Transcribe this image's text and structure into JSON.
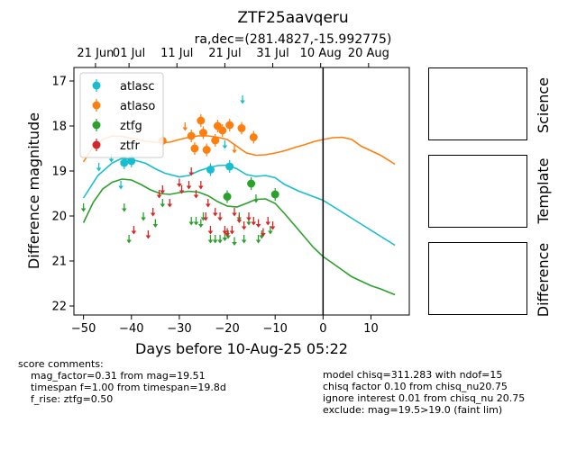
{
  "title": "ZTF25aavqeru",
  "subtitle": "ra,dec=(281.4827,-15.992775)",
  "chart_data": {
    "type": "scatter",
    "title": "ZTF25aavqeru",
    "subtitle": "ra,dec=(281.4827,-15.992775)",
    "xlabel": "Days before 10-Aug-25 05:22",
    "ylabel": "Difference magnitude",
    "xlim": [
      -52,
      18
    ],
    "ylim": [
      22.2,
      16.7
    ],
    "y_inverted": true,
    "xticks": [
      -50,
      -40,
      -30,
      -20,
      -10,
      0,
      10
    ],
    "yticks": [
      17,
      18,
      19,
      20,
      21,
      22
    ],
    "top_axis_ticks": [
      {
        "x": -47.5,
        "label": "21 Jun"
      },
      {
        "x": -40.5,
        "label": "01 Jul"
      },
      {
        "x": -30.5,
        "label": "11 Jul"
      },
      {
        "x": -20.5,
        "label": "21 Jul"
      },
      {
        "x": -10.5,
        "label": "31 Jul"
      },
      {
        "x": -0.5,
        "label": "10 Aug"
      },
      {
        "x": 9.5,
        "label": "20 Aug"
      }
    ],
    "vline_x": 0,
    "grid": false,
    "legend_position": "top-left",
    "series": [
      {
        "name": "atlasc",
        "color": "#17becf",
        "detections": [
          [
            -41.5,
            18.82
          ],
          [
            -40.0,
            18.78
          ],
          [
            -23.5,
            18.97
          ],
          [
            -19.5,
            18.9
          ]
        ],
        "upper_limits": [
          [
            -46.8,
            18.9
          ],
          [
            -44.2,
            18.7
          ],
          [
            -42.2,
            19.3
          ],
          [
            -20.5,
            18.4
          ],
          [
            -16.8,
            17.4
          ]
        ],
        "model": [
          [
            -50,
            19.6
          ],
          [
            -47,
            19.1
          ],
          [
            -44,
            18.82
          ],
          [
            -42,
            18.72
          ],
          [
            -40,
            18.74
          ],
          [
            -37,
            18.83
          ],
          [
            -35,
            18.95
          ],
          [
            -33,
            19.05
          ],
          [
            -30,
            19.13
          ],
          [
            -28,
            19.1
          ],
          [
            -26,
            19.0
          ],
          [
            -24,
            18.93
          ],
          [
            -22,
            18.88
          ],
          [
            -20,
            18.87
          ],
          [
            -18,
            18.95
          ],
          [
            -16,
            19.08
          ],
          [
            -14,
            19.12
          ],
          [
            -12,
            19.1
          ],
          [
            -10,
            19.15
          ],
          [
            -8,
            19.3
          ],
          [
            -5,
            19.45
          ],
          [
            -2,
            19.57
          ],
          [
            0,
            19.65
          ],
          [
            3,
            19.85
          ],
          [
            6,
            20.05
          ],
          [
            9,
            20.25
          ],
          [
            12,
            20.45
          ],
          [
            15,
            20.65
          ]
        ]
      },
      {
        "name": "atlaso",
        "color": "#ff7f0e",
        "detections": [
          [
            -33.5,
            18.33
          ],
          [
            -27.5,
            18.22
          ],
          [
            -26.8,
            18.5
          ],
          [
            -25.5,
            17.88
          ],
          [
            -25.0,
            18.15
          ],
          [
            -24.3,
            18.53
          ],
          [
            -22.5,
            18.32
          ],
          [
            -22.0,
            18.0
          ],
          [
            -21.0,
            18.1
          ],
          [
            -19.5,
            17.98
          ],
          [
            -17.0,
            18.05
          ],
          [
            -14.5,
            18.25
          ]
        ],
        "upper_limits": [
          [
            -28.8,
            18.0
          ],
          [
            -18.5,
            18.5
          ]
        ],
        "model": [
          [
            -50,
            18.8
          ],
          [
            -48,
            18.45
          ],
          [
            -46,
            18.3
          ],
          [
            -44,
            18.22
          ],
          [
            -42,
            18.23
          ],
          [
            -40,
            18.27
          ],
          [
            -38,
            18.32
          ],
          [
            -36,
            18.35
          ],
          [
            -34,
            18.37
          ],
          [
            -32,
            18.36
          ],
          [
            -30,
            18.3
          ],
          [
            -28,
            18.25
          ],
          [
            -26,
            18.22
          ],
          [
            -24,
            18.22
          ],
          [
            -22,
            18.25
          ],
          [
            -20,
            18.3
          ],
          [
            -18,
            18.45
          ],
          [
            -16,
            18.6
          ],
          [
            -14,
            18.65
          ],
          [
            -12,
            18.64
          ],
          [
            -10,
            18.6
          ],
          [
            -8,
            18.55
          ],
          [
            -6,
            18.48
          ],
          [
            -4,
            18.42
          ],
          [
            -2,
            18.35
          ],
          [
            0,
            18.3
          ],
          [
            2,
            18.26
          ],
          [
            4,
            18.25
          ],
          [
            6,
            18.3
          ],
          [
            8,
            18.45
          ],
          [
            10,
            18.55
          ],
          [
            12,
            18.65
          ],
          [
            15,
            18.85
          ]
        ]
      },
      {
        "name": "ztfg",
        "color": "#2ca02c",
        "detections": [
          [
            -20.0,
            19.57
          ],
          [
            -15.0,
            19.28
          ],
          [
            -10.0,
            19.52
          ]
        ],
        "upper_limits": [
          [
            -50.0,
            19.8
          ],
          [
            -41.5,
            19.8
          ],
          [
            -40.5,
            20.5
          ],
          [
            -37.5,
            20.0
          ],
          [
            -35.0,
            20.15
          ],
          [
            -33.5,
            19.7
          ],
          [
            -27.5,
            20.1
          ],
          [
            -26.5,
            20.1
          ],
          [
            -25.5,
            20.15
          ],
          [
            -25.0,
            20.0
          ],
          [
            -23.5,
            20.5
          ],
          [
            -22.5,
            20.5
          ],
          [
            -21.5,
            20.5
          ],
          [
            -20.5,
            20.45
          ],
          [
            -19.8,
            20.4
          ],
          [
            -18.5,
            20.55
          ],
          [
            -17.5,
            20.0
          ],
          [
            -16.5,
            20.5
          ],
          [
            -15.5,
            20.1
          ],
          [
            -14.0,
            19.6
          ],
          [
            -13.5,
            20.5
          ],
          [
            -12.8,
            20.4
          ],
          [
            -11.0,
            20.3
          ]
        ],
        "model": [
          [
            -50,
            20.15
          ],
          [
            -48,
            19.7
          ],
          [
            -46,
            19.4
          ],
          [
            -44,
            19.25
          ],
          [
            -42,
            19.18
          ],
          [
            -40,
            19.2
          ],
          [
            -38,
            19.3
          ],
          [
            -36,
            19.42
          ],
          [
            -34,
            19.5
          ],
          [
            -32,
            19.52
          ],
          [
            -30,
            19.48
          ],
          [
            -28,
            19.45
          ],
          [
            -26,
            19.47
          ],
          [
            -24,
            19.55
          ],
          [
            -22,
            19.68
          ],
          [
            -20,
            19.78
          ],
          [
            -18,
            19.8
          ],
          [
            -16,
            19.72
          ],
          [
            -14,
            19.63
          ],
          [
            -12,
            19.62
          ],
          [
            -10,
            19.72
          ],
          [
            -8,
            19.95
          ],
          [
            -6,
            20.2
          ],
          [
            -4,
            20.45
          ],
          [
            -2,
            20.7
          ],
          [
            0,
            20.9
          ],
          [
            2,
            21.05
          ],
          [
            4,
            21.2
          ],
          [
            6,
            21.35
          ],
          [
            8,
            21.45
          ],
          [
            10,
            21.55
          ],
          [
            12,
            21.62
          ],
          [
            15,
            21.75
          ]
        ]
      },
      {
        "name": "ztfr",
        "color": "#d62728",
        "detections": [],
        "upper_limits": [
          [
            -39.5,
            20.3
          ],
          [
            -36.5,
            20.4
          ],
          [
            -35.5,
            19.9
          ],
          [
            -34.2,
            19.5
          ],
          [
            -33.5,
            19.4
          ],
          [
            -32.0,
            19.7
          ],
          [
            -30.0,
            19.25
          ],
          [
            -29.5,
            19.4
          ],
          [
            -28.0,
            19.3
          ],
          [
            -27.5,
            19.0
          ],
          [
            -26.5,
            19.5
          ],
          [
            -25.5,
            19.3
          ],
          [
            -24.5,
            20.0
          ],
          [
            -24.0,
            19.7
          ],
          [
            -23.5,
            20.3
          ],
          [
            -22.5,
            19.9
          ],
          [
            -21.5,
            20.0
          ],
          [
            -20.5,
            20.3
          ],
          [
            -20.0,
            20.35
          ],
          [
            -19.0,
            20.3
          ],
          [
            -18.5,
            19.9
          ],
          [
            -17.5,
            20.05
          ],
          [
            -16.5,
            20.2
          ],
          [
            -15.5,
            20.0
          ],
          [
            -14.5,
            20.1
          ],
          [
            -13.5,
            20.15
          ],
          [
            -12.5,
            20.35
          ],
          [
            -11.5,
            20.1
          ],
          [
            -10.5,
            20.2
          ]
        ],
        "model": []
      }
    ]
  },
  "panels": {
    "science": "Science",
    "template": "Template",
    "difference": "Difference"
  },
  "comments": {
    "left": "score comments:\n    mag_factor=0.31 from mag=19.51\n    timespan f=1.00 from timespan=19.8d\n    f_rise: ztfg=0.50",
    "right": "model chisq=311.283 with ndof=15\nchisq factor 0.10 from chisq_nu20.75\nignore interest 0.01 from chisq_nu 20.75\nexclude: mag=19.5>19.0 (faint lim)"
  }
}
